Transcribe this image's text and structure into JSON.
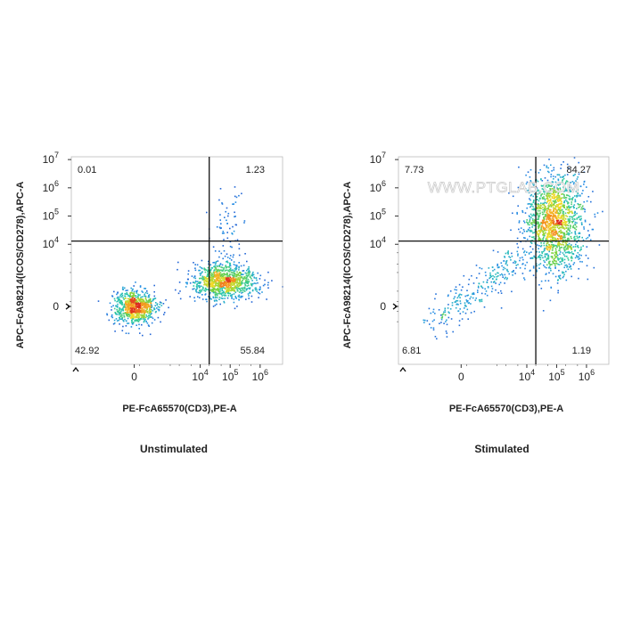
{
  "watermark": "WWW.PTGLAB.COM",
  "chart_data": [
    {
      "type": "scatter",
      "title": "",
      "caption": "Unstimulated",
      "xlabel": "PE-FcA65570(CD3),PE-A",
      "ylabel": "APC-FcA98214(ICOS/CD278),APC-A",
      "x_scale": "biexponential",
      "y_scale": "biexponential",
      "x_ticks": [
        {
          "value": 0,
          "base": "0",
          "exp": ""
        },
        {
          "value": 10000,
          "base": "10",
          "exp": "4"
        },
        {
          "value": 100000,
          "base": "10",
          "exp": "5"
        },
        {
          "value": 1000000,
          "base": "10",
          "exp": "6"
        }
      ],
      "y_ticks": [
        {
          "value": 0,
          "base": "0",
          "exp": ""
        },
        {
          "value": 10000,
          "base": "10",
          "exp": "4"
        },
        {
          "value": 100000,
          "base": "10",
          "exp": "5"
        },
        {
          "value": 1000000,
          "base": "10",
          "exp": "6"
        },
        {
          "value": 10000000,
          "base": "10",
          "exp": "7"
        }
      ],
      "gate": {
        "x": 20000,
        "y": 13000
      },
      "quadrants": {
        "top_left": "0.01",
        "top_right": "1.23",
        "bottom_left": "42.92",
        "bottom_right": "55.84"
      },
      "populations": [
        {
          "x": 0,
          "y": 0,
          "spread_x": 0.35,
          "spread_y": 0.3,
          "share": 0.43
        },
        {
          "x": 60000,
          "y": 500,
          "spread_x": 0.55,
          "spread_y": 0.3,
          "share": 0.55
        },
        {
          "x": 80000,
          "y": 30000,
          "spread_x": 0.3,
          "spread_y": 0.6,
          "share": 0.02
        }
      ]
    },
    {
      "type": "scatter",
      "title": "",
      "caption": "Stimulated",
      "xlabel": "PE-FcA65570(CD3),PE-A",
      "ylabel": "APC-FcA98214(ICOS/CD278),APC-A",
      "x_scale": "biexponential",
      "y_scale": "biexponential",
      "x_ticks": [
        {
          "value": 0,
          "base": "0",
          "exp": ""
        },
        {
          "value": 10000,
          "base": "10",
          "exp": "4"
        },
        {
          "value": 100000,
          "base": "10",
          "exp": "5"
        },
        {
          "value": 1000000,
          "base": "10",
          "exp": "6"
        }
      ],
      "y_ticks": [
        {
          "value": 0,
          "base": "0",
          "exp": ""
        },
        {
          "value": 10000,
          "base": "10",
          "exp": "4"
        },
        {
          "value": 100000,
          "base": "10",
          "exp": "5"
        },
        {
          "value": 1000000,
          "base": "10",
          "exp": "6"
        },
        {
          "value": 10000000,
          "base": "10",
          "exp": "7"
        }
      ],
      "gate": {
        "x": 20000,
        "y": 13000
      },
      "quadrants": {
        "top_left": "7.73",
        "top_right": "84.27",
        "bottom_left": "6.81",
        "bottom_right": "1.19"
      },
      "populations": [
        {
          "x": 80000,
          "y": 70000,
          "spread_x": 0.5,
          "spread_y": 0.85,
          "share": 0.84
        },
        {
          "x": 3000,
          "y": 5000,
          "spread_x": 0.9,
          "spread_y": 0.7,
          "share": 0.15
        },
        {
          "x": 100000,
          "y": 3000,
          "spread_x": 0.35,
          "spread_y": 0.35,
          "share": 0.01
        }
      ]
    }
  ]
}
